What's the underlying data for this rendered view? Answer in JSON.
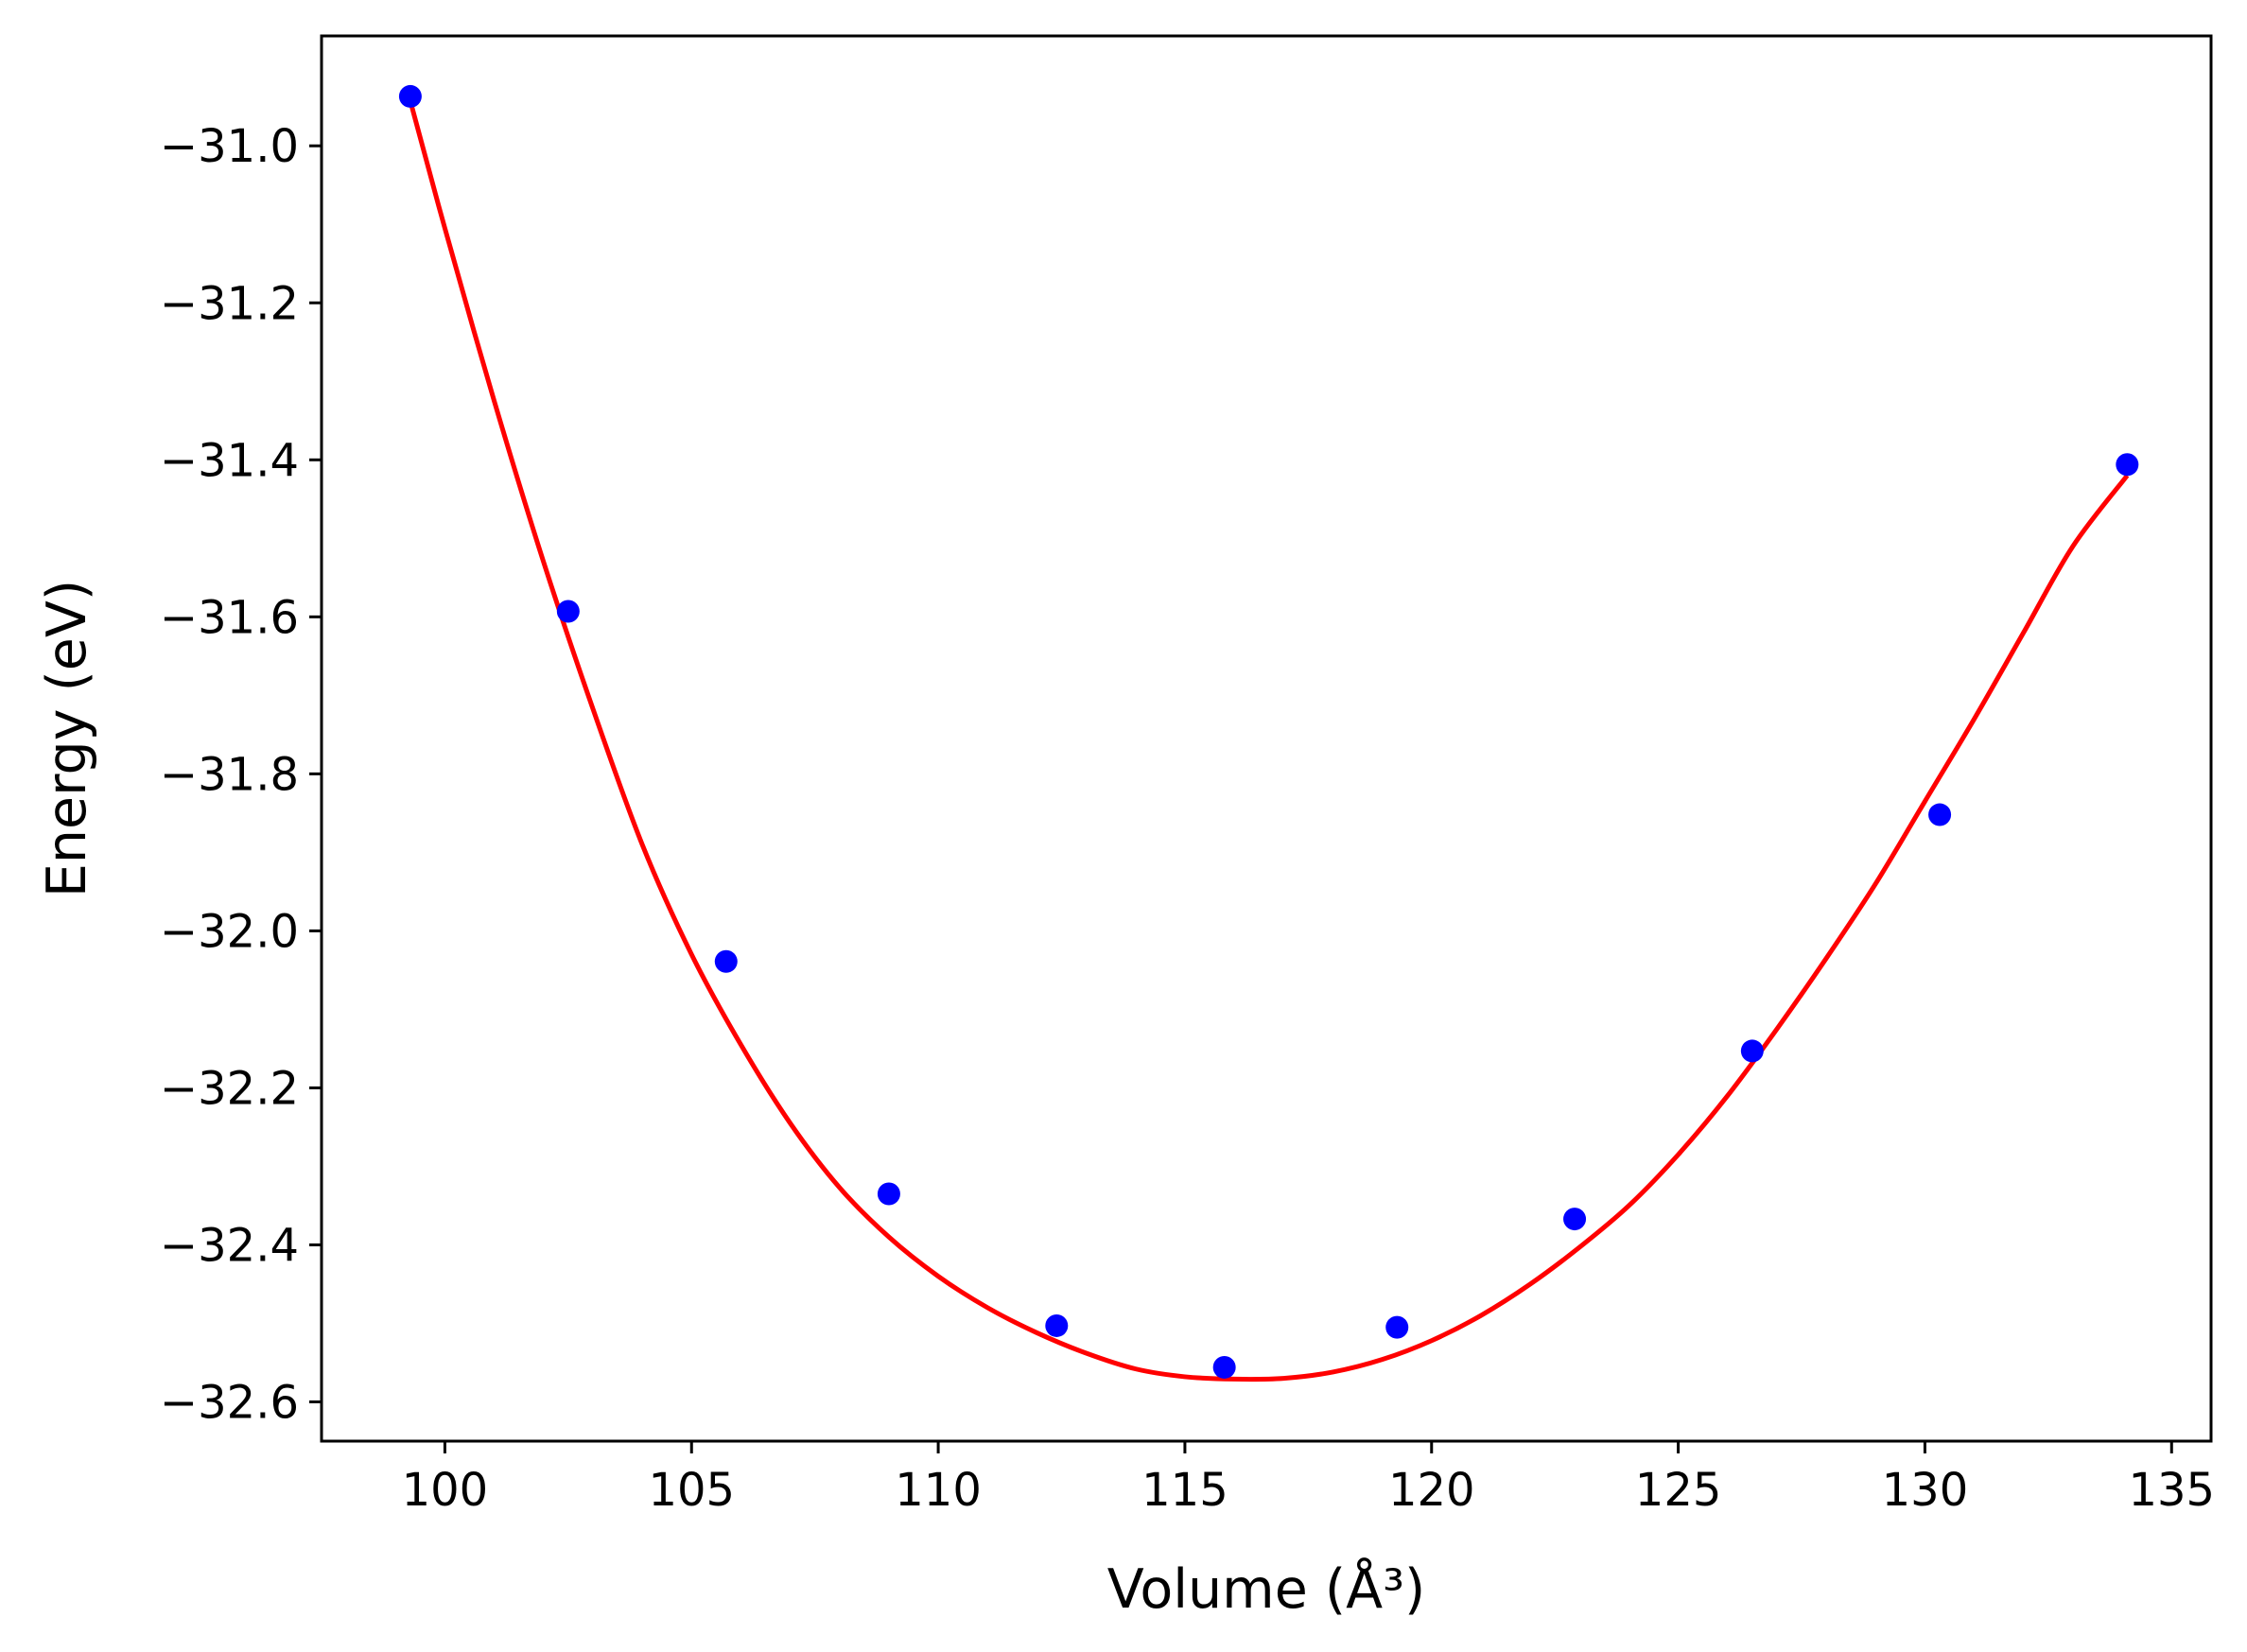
{
  "chart_data": {
    "type": "scatter",
    "xlabel": "Volume (Å³)",
    "ylabel": "Energy (eV)",
    "xlim": [
      97.5,
      135.8
    ],
    "ylim": [
      -32.65,
      -30.86
    ],
    "x_ticks": [
      100,
      105,
      110,
      115,
      120,
      125,
      130,
      135
    ],
    "x_tick_labels": [
      "100",
      "105",
      "110",
      "115",
      "120",
      "125",
      "130",
      "135"
    ],
    "y_ticks": [
      -31.0,
      -31.2,
      -31.4,
      -31.6,
      -31.8,
      -32.0,
      -32.2,
      -32.4,
      -32.6
    ],
    "y_tick_labels": [
      "−31.0",
      "−31.2",
      "−31.4",
      "−31.6",
      "−31.8",
      "−32.0",
      "−32.2",
      "−32.4",
      "−32.6"
    ],
    "grid": false,
    "series": [
      {
        "kind": "points",
        "color": "#0000ff",
        "x": [
          99.3,
          102.5,
          105.7,
          109.0,
          112.4,
          115.8,
          119.3,
          122.9,
          126.5,
          130.3,
          134.1
        ],
        "y": [
          -30.937,
          -31.593,
          -32.039,
          -32.335,
          -32.503,
          -32.556,
          -32.505,
          -32.367,
          -32.153,
          -31.852,
          -31.406
        ]
      },
      {
        "kind": "fit-curve",
        "color": "#ff0000",
        "x": [
          99.3,
          100.0,
          101.0,
          102.0,
          103.0,
          104.0,
          105.0,
          106.0,
          107.0,
          108.0,
          109.0,
          110.0,
          111.0,
          112.0,
          113.0,
          114.0,
          115.0,
          116.0,
          117.0,
          118.0,
          119.0,
          120.0,
          121.0,
          122.0,
          123.0,
          124.0,
          125.0,
          126.0,
          127.0,
          128.0,
          129.0,
          130.0,
          131.0,
          132.0,
          133.0,
          134.1
        ],
        "y": [
          -30.943,
          -31.105,
          -31.325,
          -31.53,
          -31.717,
          -31.89,
          -32.03,
          -32.145,
          -32.245,
          -32.327,
          -32.39,
          -32.44,
          -32.48,
          -32.512,
          -32.538,
          -32.558,
          -32.568,
          -32.571,
          -32.57,
          -32.562,
          -32.546,
          -32.522,
          -32.49,
          -32.45,
          -32.403,
          -32.35,
          -32.285,
          -32.21,
          -32.125,
          -32.035,
          -31.94,
          -31.835,
          -31.73,
          -31.62,
          -31.51,
          -31.42
        ]
      }
    ]
  }
}
